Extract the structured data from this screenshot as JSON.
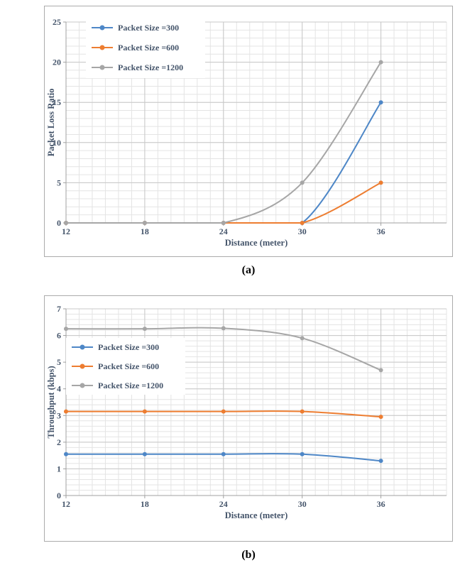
{
  "chart_data": [
    {
      "type": "line",
      "caption": "(a)",
      "x": [
        12,
        18,
        24,
        30,
        36
      ],
      "series": [
        {
          "name": "Packet Size =300",
          "color": "#4E87C7",
          "values": [
            0,
            0,
            0,
            0,
            15
          ]
        },
        {
          "name": "Packet Size =600",
          "color": "#ED7D31",
          "values": [
            0,
            0,
            0,
            0,
            5
          ]
        },
        {
          "name": "Packet Size =1200",
          "color": "#A6A6A6",
          "values": [
            0,
            0,
            0,
            5,
            20
          ]
        }
      ],
      "xlabel": "Distance (meter)",
      "ylabel": "Packet Loss Ratio",
      "xlim": [
        12,
        41
      ],
      "ylim": [
        0,
        25
      ],
      "xticks": [
        12,
        18,
        24,
        30,
        36
      ],
      "yticks": [
        0,
        5,
        10,
        15,
        20,
        25
      ],
      "x_minor_step": 1,
      "y_minor_step": 1,
      "grid": true,
      "legend_position": "upper-left-inside"
    },
    {
      "type": "line",
      "caption": "(b)",
      "x": [
        12,
        18,
        24,
        30,
        36
      ],
      "series": [
        {
          "name": "Packet Size =300",
          "color": "#4E87C7",
          "values": [
            1.55,
            1.55,
            1.55,
            1.55,
            1.3
          ]
        },
        {
          "name": "Packet Size =600",
          "color": "#ED7D31",
          "values": [
            3.15,
            3.15,
            3.15,
            3.15,
            2.95
          ]
        },
        {
          "name": "Packet Size =1200",
          "color": "#A6A6A6",
          "values": [
            6.25,
            6.25,
            6.27,
            5.9,
            4.7
          ]
        }
      ],
      "xlabel": "Distance (meter)",
      "ylabel": "Throughput (kbps)",
      "xlim": [
        12,
        41
      ],
      "ylim": [
        0,
        7
      ],
      "xticks": [
        12,
        18,
        24,
        30,
        36
      ],
      "yticks": [
        0,
        1,
        2,
        3,
        4,
        5,
        6,
        7
      ],
      "x_minor_step": 1,
      "y_minor_step": 0.2,
      "grid": true,
      "legend_position": "left-inside"
    }
  ],
  "styles": {
    "grid_major_color": "#C8C8C8",
    "grid_minor_color": "#E4E4E4",
    "axis_color": "#A0A0A0",
    "text_color": "#44546A",
    "legend_background": "#FFFFFF"
  }
}
